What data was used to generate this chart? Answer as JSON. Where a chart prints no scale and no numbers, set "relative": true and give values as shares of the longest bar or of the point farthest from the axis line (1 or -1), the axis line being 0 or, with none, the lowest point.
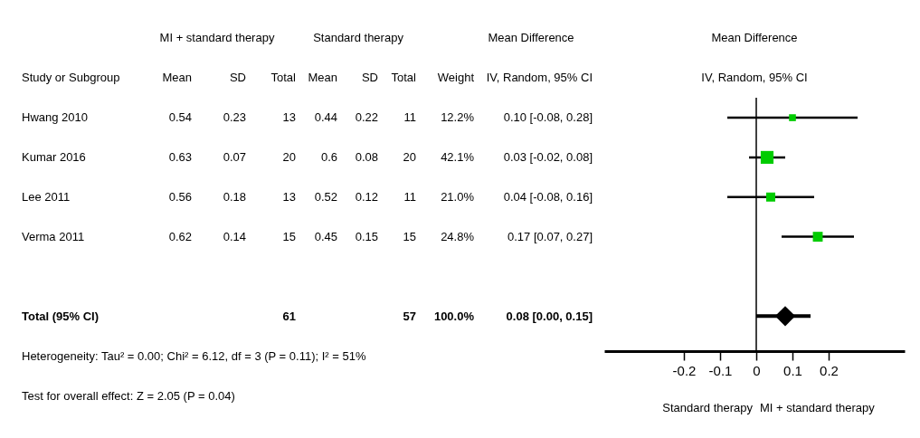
{
  "chart_data": [
    {
      "type": "other",
      "categories": [
        "Study or Subgroup",
        "Mean",
        "SD",
        "Total",
        "Mean",
        "SD",
        "Total",
        "Weight",
        "IV, Random, 95% CI"
      ],
      "y_categories": [
        "Hwang 2010",
        "Kumar 2016",
        "Lee 2011",
        "Verma 2011",
        null,
        "Total (95% CI)"
      ],
      "cell_labels": [
        [
          "0.54",
          "0.23",
          "13",
          "0.44",
          "0.22",
          "11",
          "12.2%",
          "0.10 [-0.08, 0.28]"
        ],
        [
          "0.63",
          "0.07",
          "20",
          "0.6",
          "0.08",
          "20",
          "42.1%",
          "0.03 [-0.02, 0.08]"
        ],
        [
          "0.56",
          "0.18",
          "13",
          "0.52",
          "0.12",
          "11",
          "21.0%",
          "0.04 [-0.08, 0.16]"
        ],
        [
          "0.62",
          "0.14",
          "15",
          "0.45",
          "0.15",
          "15",
          "24.8%",
          "0.17 [0.07, 0.27]"
        ],
        [
          null,
          null,
          null,
          null,
          null,
          null,
          null,
          null
        ],
        [
          null,
          null,
          "61",
          null,
          null,
          "57",
          "100.0%",
          "0.08 [0.00, 0.15]"
        ]
      ],
      "annotations": [
        "MI + standard therapy",
        "Standard therapy",
        "Mean Difference",
        "Heterogeneity: Tau² = 0.00; Chi² = 6.12, df = 3 (P = 0.11); I² = 51%",
        "Test for overall effect: Z = 2.05 (P = 0.04)"
      ]
    },
    {
      "type": "scatter",
      "title": "Mean Difference",
      "subtitle": "IV, Random, 95% CI",
      "relative": true,
      "series": [
        {
          "color": "#00cc00",
          "marker": "square",
          "x": [
            0.1,
            0.03,
            0.04,
            0.17
          ],
          "values": [
            1,
            0.83,
            0.66,
            0.49
          ],
          "sizes": [
            0.29,
            1,
            0.5,
            0.59
          ],
          "xerrors": [
            [
              -0.08,
              0.28
            ],
            [
              -0.02,
              0.08
            ],
            [
              -0.08,
              0.16
            ],
            [
              0.07,
              0.27
            ]
          ]
        },
        {
          "color": "#000000",
          "marker": "diamond",
          "x": [
            0.08
          ],
          "values": [
            0.15
          ],
          "xerrors": [
            [
              0.0,
              0.15
            ]
          ]
        }
      ],
      "xlim": [
        -0.42,
        0.41
      ],
      "xticks": [
        -0.2,
        -0.1,
        0,
        0.1,
        0.2
      ],
      "ref_lines": [
        {
          "axis": "x",
          "value": 0,
          "color": "#000000"
        }
      ],
      "annotations": [
        "Standard therapy",
        "MI + standard therapy"
      ],
      "tick_labels": "x",
      "grid": false,
      "legend": false
    }
  ]
}
